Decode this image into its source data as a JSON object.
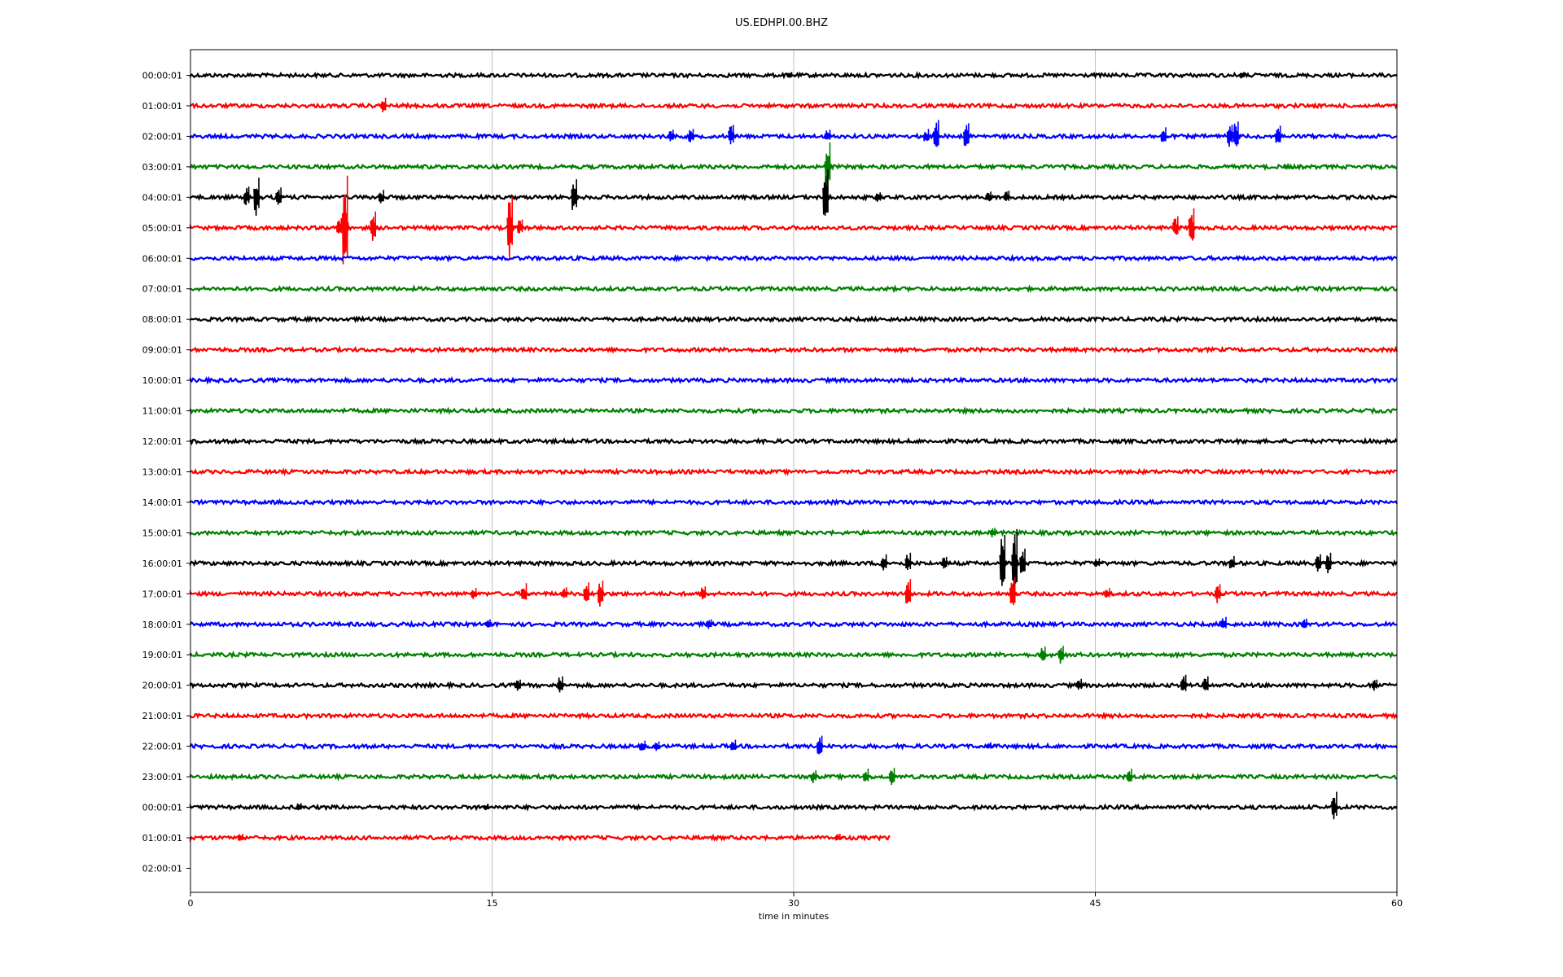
{
  "chart_data": {
    "type": "line",
    "title": "US.EDHPI.00.BHZ",
    "xlabel": "time in minutes",
    "ylabel": "",
    "xlim": [
      0,
      60
    ],
    "xticks": [
      "0",
      "15",
      "30",
      "45",
      "60"
    ],
    "grid": "vertical",
    "colors_cycle": [
      "#000000",
      "#ff0000",
      "#0000ff",
      "#008000"
    ],
    "rows": [
      {
        "label": "00:00:01",
        "end": 60,
        "events": [
          {
            "t": 29.9,
            "a": 4
          },
          {
            "t": 52.4,
            "a": 4
          }
        ]
      },
      {
        "label": "01:00:01",
        "end": 60,
        "events": [
          {
            "t": 9.7,
            "a": 10
          }
        ]
      },
      {
        "label": "02:00:01",
        "end": 60,
        "events": [
          {
            "t": 24.0,
            "a": 8
          },
          {
            "t": 25.0,
            "a": 9
          },
          {
            "t": 27.0,
            "a": 14
          },
          {
            "t": 31.8,
            "a": 8
          },
          {
            "t": 36.7,
            "a": 9
          },
          {
            "t": 37.2,
            "a": 20
          },
          {
            "t": 38.7,
            "a": 16
          },
          {
            "t": 48.5,
            "a": 11
          },
          {
            "t": 51.8,
            "a": 14
          },
          {
            "t": 52.1,
            "a": 18
          },
          {
            "t": 54.2,
            "a": 13
          }
        ]
      },
      {
        "label": "03:00:01",
        "end": 60,
        "events": [
          {
            "t": 31.8,
            "a": 30
          },
          {
            "t": 54.6,
            "a": 4
          }
        ]
      },
      {
        "label": "04:00:01",
        "end": 60,
        "events": [
          {
            "t": 2.9,
            "a": 13
          },
          {
            "t": 3.4,
            "a": 24
          },
          {
            "t": 4.5,
            "a": 12
          },
          {
            "t": 9.6,
            "a": 9
          },
          {
            "t": 19.2,
            "a": 22
          },
          {
            "t": 31.7,
            "a": 34
          },
          {
            "t": 34.3,
            "a": 6
          },
          {
            "t": 39.8,
            "a": 7
          },
          {
            "t": 40.7,
            "a": 8
          }
        ]
      },
      {
        "label": "05:00:01",
        "end": 60,
        "events": [
          {
            "t": 7.5,
            "a": 12
          },
          {
            "t": 7.8,
            "a": 64
          },
          {
            "t": 9.2,
            "a": 20
          },
          {
            "t": 16.0,
            "a": 38
          },
          {
            "t": 16.5,
            "a": 10
          },
          {
            "t": 49.1,
            "a": 14
          },
          {
            "t": 49.9,
            "a": 24
          }
        ]
      },
      {
        "label": "06:00:01",
        "end": 60,
        "events": []
      },
      {
        "label": "07:00:01",
        "end": 60,
        "events": []
      },
      {
        "label": "08:00:01",
        "end": 60,
        "events": []
      },
      {
        "label": "09:00:01",
        "end": 60,
        "events": []
      },
      {
        "label": "10:00:01",
        "end": 60,
        "events": []
      },
      {
        "label": "11:00:01",
        "end": 60,
        "events": []
      },
      {
        "label": "12:00:01",
        "end": 60,
        "events": []
      },
      {
        "label": "13:00:01",
        "end": 60,
        "events": []
      },
      {
        "label": "14:00:01",
        "end": 60,
        "events": []
      },
      {
        "label": "15:00:01",
        "end": 60,
        "events": [
          {
            "t": 40.0,
            "a": 6
          }
        ]
      },
      {
        "label": "16:00:01",
        "end": 60,
        "events": [
          {
            "t": 34.6,
            "a": 11
          },
          {
            "t": 35.8,
            "a": 13
          },
          {
            "t": 37.6,
            "a": 8
          },
          {
            "t": 40.5,
            "a": 35
          },
          {
            "t": 41.1,
            "a": 42
          },
          {
            "t": 41.5,
            "a": 18
          },
          {
            "t": 45.2,
            "a": 6
          },
          {
            "t": 51.9,
            "a": 9
          },
          {
            "t": 56.2,
            "a": 11
          },
          {
            "t": 56.7,
            "a": 13
          }
        ]
      },
      {
        "label": "17:00:01",
        "end": 60,
        "events": [
          {
            "t": 14.2,
            "a": 7
          },
          {
            "t": 16.7,
            "a": 13
          },
          {
            "t": 18.7,
            "a": 8
          },
          {
            "t": 19.8,
            "a": 14
          },
          {
            "t": 20.5,
            "a": 16
          },
          {
            "t": 25.6,
            "a": 9
          },
          {
            "t": 35.8,
            "a": 18
          },
          {
            "t": 41.0,
            "a": 20
          },
          {
            "t": 45.7,
            "a": 7
          },
          {
            "t": 51.2,
            "a": 12
          }
        ]
      },
      {
        "label": "18:00:01",
        "end": 60,
        "events": [
          {
            "t": 14.9,
            "a": 6
          },
          {
            "t": 25.9,
            "a": 6
          },
          {
            "t": 51.5,
            "a": 9
          },
          {
            "t": 55.5,
            "a": 7
          }
        ]
      },
      {
        "label": "19:00:01",
        "end": 60,
        "events": [
          {
            "t": 42.5,
            "a": 10
          },
          {
            "t": 43.4,
            "a": 11
          }
        ]
      },
      {
        "label": "20:00:01",
        "end": 60,
        "events": [
          {
            "t": 16.4,
            "a": 7
          },
          {
            "t": 18.5,
            "a": 11
          },
          {
            "t": 44.3,
            "a": 8
          },
          {
            "t": 49.5,
            "a": 13
          },
          {
            "t": 50.6,
            "a": 11
          },
          {
            "t": 59.0,
            "a": 7
          }
        ]
      },
      {
        "label": "21:00:01",
        "end": 60,
        "events": []
      },
      {
        "label": "22:00:01",
        "end": 60,
        "events": [
          {
            "t": 22.6,
            "a": 7
          },
          {
            "t": 23.3,
            "a": 6
          },
          {
            "t": 27.1,
            "a": 8
          },
          {
            "t": 31.4,
            "a": 13
          },
          {
            "t": 39.8,
            "a": 5
          }
        ]
      },
      {
        "label": "23:00:01",
        "end": 60,
        "events": [
          {
            "t": 31.1,
            "a": 8
          },
          {
            "t": 33.7,
            "a": 10
          },
          {
            "t": 35.0,
            "a": 11
          },
          {
            "t": 46.8,
            "a": 10
          }
        ]
      },
      {
        "label": "00:00:01",
        "end": 60,
        "events": [
          {
            "t": 5.5,
            "a": 5
          },
          {
            "t": 14.8,
            "a": 4
          },
          {
            "t": 57.0,
            "a": 19
          }
        ]
      },
      {
        "label": "01:00:01",
        "end": 34.8,
        "events": [
          {
            "t": 2.6,
            "a": 5
          },
          {
            "t": 32.3,
            "a": 5
          }
        ]
      },
      {
        "label": "02:00:01",
        "end": 0,
        "events": []
      }
    ]
  }
}
